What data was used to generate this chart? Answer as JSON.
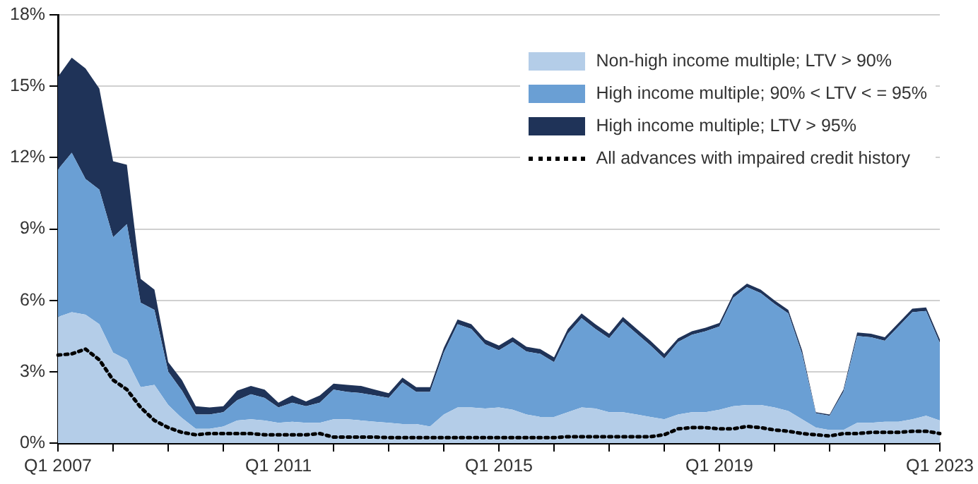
{
  "chart_data": {
    "type": "area",
    "stacked": true,
    "legend": "top right",
    "grid": "y",
    "categories": [
      "Q1 2007",
      null,
      null,
      null,
      null,
      null,
      null,
      null,
      null,
      null,
      null,
      null,
      null,
      null,
      null,
      null,
      "Q1 2011",
      null,
      null,
      null,
      null,
      null,
      null,
      null,
      null,
      null,
      null,
      null,
      null,
      null,
      null,
      null,
      "Q1 2015",
      null,
      null,
      null,
      null,
      null,
      null,
      null,
      null,
      null,
      null,
      null,
      null,
      null,
      null,
      null,
      "Q1 2019",
      null,
      null,
      null,
      null,
      null,
      null,
      null,
      null,
      null,
      null,
      null,
      null,
      null,
      null,
      null,
      "Q1 2023"
    ],
    "ylim": [
      0,
      18
    ],
    "yticks": [
      {
        "value": 0,
        "label": "0%"
      },
      {
        "value": 3,
        "label": "3%"
      },
      {
        "value": 6,
        "label": "6%"
      },
      {
        "value": 9,
        "label": "9%"
      },
      {
        "value": 12,
        "label": "12%"
      },
      {
        "value": 15,
        "label": "15%"
      },
      {
        "value": 18,
        "label": "18%"
      }
    ],
    "series": [
      {
        "name": "Non-high income multiple; LTV > 90%",
        "type": "area",
        "color": "#b4cde8",
        "values": [
          5.3,
          5.5,
          5.4,
          5.0,
          3.8,
          3.5,
          2.35,
          2.45,
          1.6,
          1.05,
          0.6,
          0.6,
          0.7,
          0.95,
          1.0,
          0.95,
          0.85,
          0.9,
          0.85,
          0.85,
          1.0,
          1.0,
          0.95,
          0.9,
          0.85,
          0.8,
          0.8,
          0.7,
          1.2,
          1.5,
          1.5,
          1.45,
          1.5,
          1.4,
          1.2,
          1.1,
          1.1,
          1.3,
          1.5,
          1.45,
          1.3,
          1.3,
          1.2,
          1.1,
          1.0,
          1.2,
          1.3,
          1.3,
          1.4,
          1.55,
          1.6,
          1.6,
          1.5,
          1.35,
          1.0,
          0.65,
          0.55,
          0.55,
          0.85,
          0.85,
          0.9,
          0.9,
          1.0,
          1.15,
          0.95
        ]
      },
      {
        "name": "High income multiple; 90% < LTV < = 95%",
        "type": "area",
        "color": "#6a9fd4",
        "values": [
          6.2,
          6.7,
          5.7,
          5.65,
          4.85,
          5.7,
          3.55,
          3.15,
          1.4,
          1.15,
          0.6,
          0.6,
          0.6,
          0.85,
          1.05,
          0.95,
          0.65,
          0.8,
          0.7,
          0.85,
          1.25,
          1.15,
          1.15,
          1.1,
          1.05,
          1.75,
          1.35,
          1.45,
          2.6,
          3.5,
          3.3,
          2.7,
          2.4,
          2.85,
          2.65,
          2.65,
          2.3,
          3.3,
          3.75,
          3.35,
          3.1,
          3.8,
          3.4,
          3.0,
          2.55,
          3.05,
          3.25,
          3.4,
          3.5,
          4.55,
          4.95,
          4.7,
          4.35,
          4.1,
          2.75,
          0.6,
          0.6,
          1.6,
          3.65,
          3.6,
          3.4,
          4.0,
          4.5,
          4.4,
          3.25
        ]
      },
      {
        "name": "High income multiple; LTV > 95%",
        "type": "area",
        "color": "#1f3358",
        "values": [
          3.9,
          4.0,
          4.65,
          4.25,
          3.2,
          2.5,
          1.0,
          0.85,
          0.4,
          0.45,
          0.35,
          0.3,
          0.25,
          0.4,
          0.35,
          0.35,
          0.2,
          0.3,
          0.2,
          0.3,
          0.25,
          0.3,
          0.3,
          0.25,
          0.2,
          0.2,
          0.2,
          0.2,
          0.2,
          0.2,
          0.2,
          0.2,
          0.2,
          0.2,
          0.2,
          0.2,
          0.2,
          0.2,
          0.2,
          0.2,
          0.2,
          0.2,
          0.2,
          0.2,
          0.2,
          0.15,
          0.15,
          0.15,
          0.15,
          0.15,
          0.15,
          0.15,
          0.15,
          0.15,
          0.15,
          0.05,
          0.05,
          0.1,
          0.15,
          0.15,
          0.15,
          0.15,
          0.15,
          0.15,
          0.15
        ]
      },
      {
        "name": "All advances with impaired credit history",
        "type": "line",
        "line_style": "dotted",
        "color": "#000000",
        "values": [
          3.7,
          3.75,
          3.95,
          3.5,
          2.65,
          2.25,
          1.5,
          0.95,
          0.65,
          0.45,
          0.35,
          0.4,
          0.4,
          0.4,
          0.4,
          0.35,
          0.35,
          0.35,
          0.35,
          0.4,
          0.25,
          0.25,
          0.25,
          0.25,
          0.23,
          0.23,
          0.23,
          0.23,
          0.23,
          0.23,
          0.23,
          0.23,
          0.23,
          0.23,
          0.23,
          0.23,
          0.23,
          0.27,
          0.27,
          0.27,
          0.27,
          0.27,
          0.27,
          0.27,
          0.35,
          0.6,
          0.65,
          0.65,
          0.6,
          0.6,
          0.7,
          0.65,
          0.55,
          0.5,
          0.4,
          0.35,
          0.3,
          0.4,
          0.4,
          0.45,
          0.45,
          0.45,
          0.5,
          0.5,
          0.4
        ]
      }
    ]
  }
}
